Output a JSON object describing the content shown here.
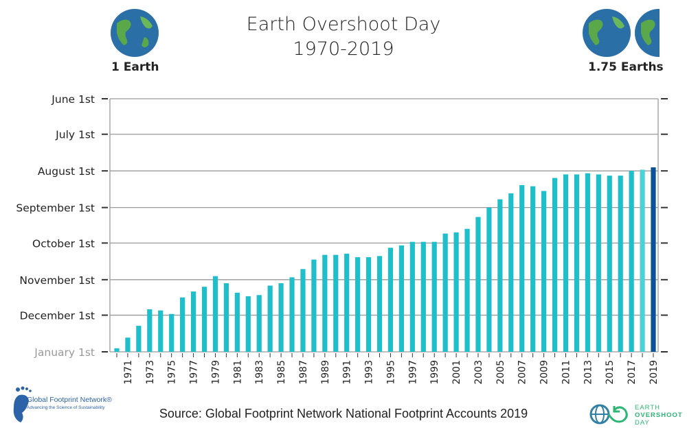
{
  "header": {
    "title_line1": "Earth Overshoot Day",
    "title_line2": "1970-2019",
    "left_label": "1 Earth",
    "right_label": "1.75 Earths"
  },
  "footer": {
    "source": "Source: Global Footprint Network National Footprint Accounts 2019",
    "gfn_logo_name": "Global Footprint Network®",
    "gfn_logo_tagline": "Advancing the Science of Sustainability",
    "eod_logo_lines": [
      "EARTH",
      "OVERSHOOT",
      "DAY"
    ]
  },
  "colors": {
    "bar": "#1ebfcb",
    "bar_2018": "#4fcfd8",
    "bar_2019": "#0c5297",
    "grid": "#999999",
    "first_tick_label": "#999999"
  },
  "chart_data": {
    "type": "bar",
    "title": "Earth Overshoot Day 1970-2019",
    "xlabel": "",
    "ylabel": "",
    "y_axis": "date (day of year), inverted: later dates at bottom",
    "ylim": [
      "June 1st",
      "January 1st"
    ],
    "y_ticks": [
      "June 1st",
      "July 1st",
      "August 1st",
      "September 1st",
      "October 1st",
      "November 1st",
      "December 1st",
      "January 1st"
    ],
    "x_tick_labels": [
      "1971",
      "1973",
      "1975",
      "1977",
      "1979",
      "1981",
      "1983",
      "1985",
      "1987",
      "1989",
      "1991",
      "1993",
      "1995",
      "1997",
      "1999",
      "2001",
      "2003",
      "2005",
      "2007",
      "2009",
      "2011",
      "2013",
      "2015",
      "2017",
      "2019"
    ],
    "grid": "horizontal",
    "categories": [
      1970,
      1971,
      1972,
      1973,
      1974,
      1975,
      1976,
      1977,
      1978,
      1979,
      1980,
      1981,
      1982,
      1983,
      1984,
      1985,
      1986,
      1987,
      1988,
      1989,
      1990,
      1991,
      1992,
      1993,
      1994,
      1995,
      1996,
      1997,
      1998,
      1999,
      2000,
      2001,
      2002,
      2003,
      2004,
      2005,
      2006,
      2007,
      2008,
      2009,
      2010,
      2011,
      2012,
      2013,
      2014,
      2015,
      2016,
      2017,
      2018,
      2019
    ],
    "values": [
      "12-29",
      "12-20",
      "12-10",
      "11-26",
      "11-27",
      "11-30",
      "11-16",
      "11-11",
      "11-07",
      "10-29",
      "11-04",
      "11-12",
      "11-15",
      "11-14",
      "11-06",
      "11-04",
      "10-30",
      "10-23",
      "10-15",
      "10-11",
      "10-11",
      "10-10",
      "10-13",
      "10-13",
      "10-12",
      "10-05",
      "10-03",
      "09-30",
      "09-30",
      "09-30",
      "09-23",
      "09-22",
      "09-19",
      "09-09",
      "09-01",
      "08-25",
      "08-20",
      "08-13",
      "08-14",
      "08-18",
      "08-07",
      "08-04",
      "08-04",
      "08-03",
      "08-04",
      "08-05",
      "08-05",
      "08-01",
      "07-31",
      "07-29"
    ]
  }
}
